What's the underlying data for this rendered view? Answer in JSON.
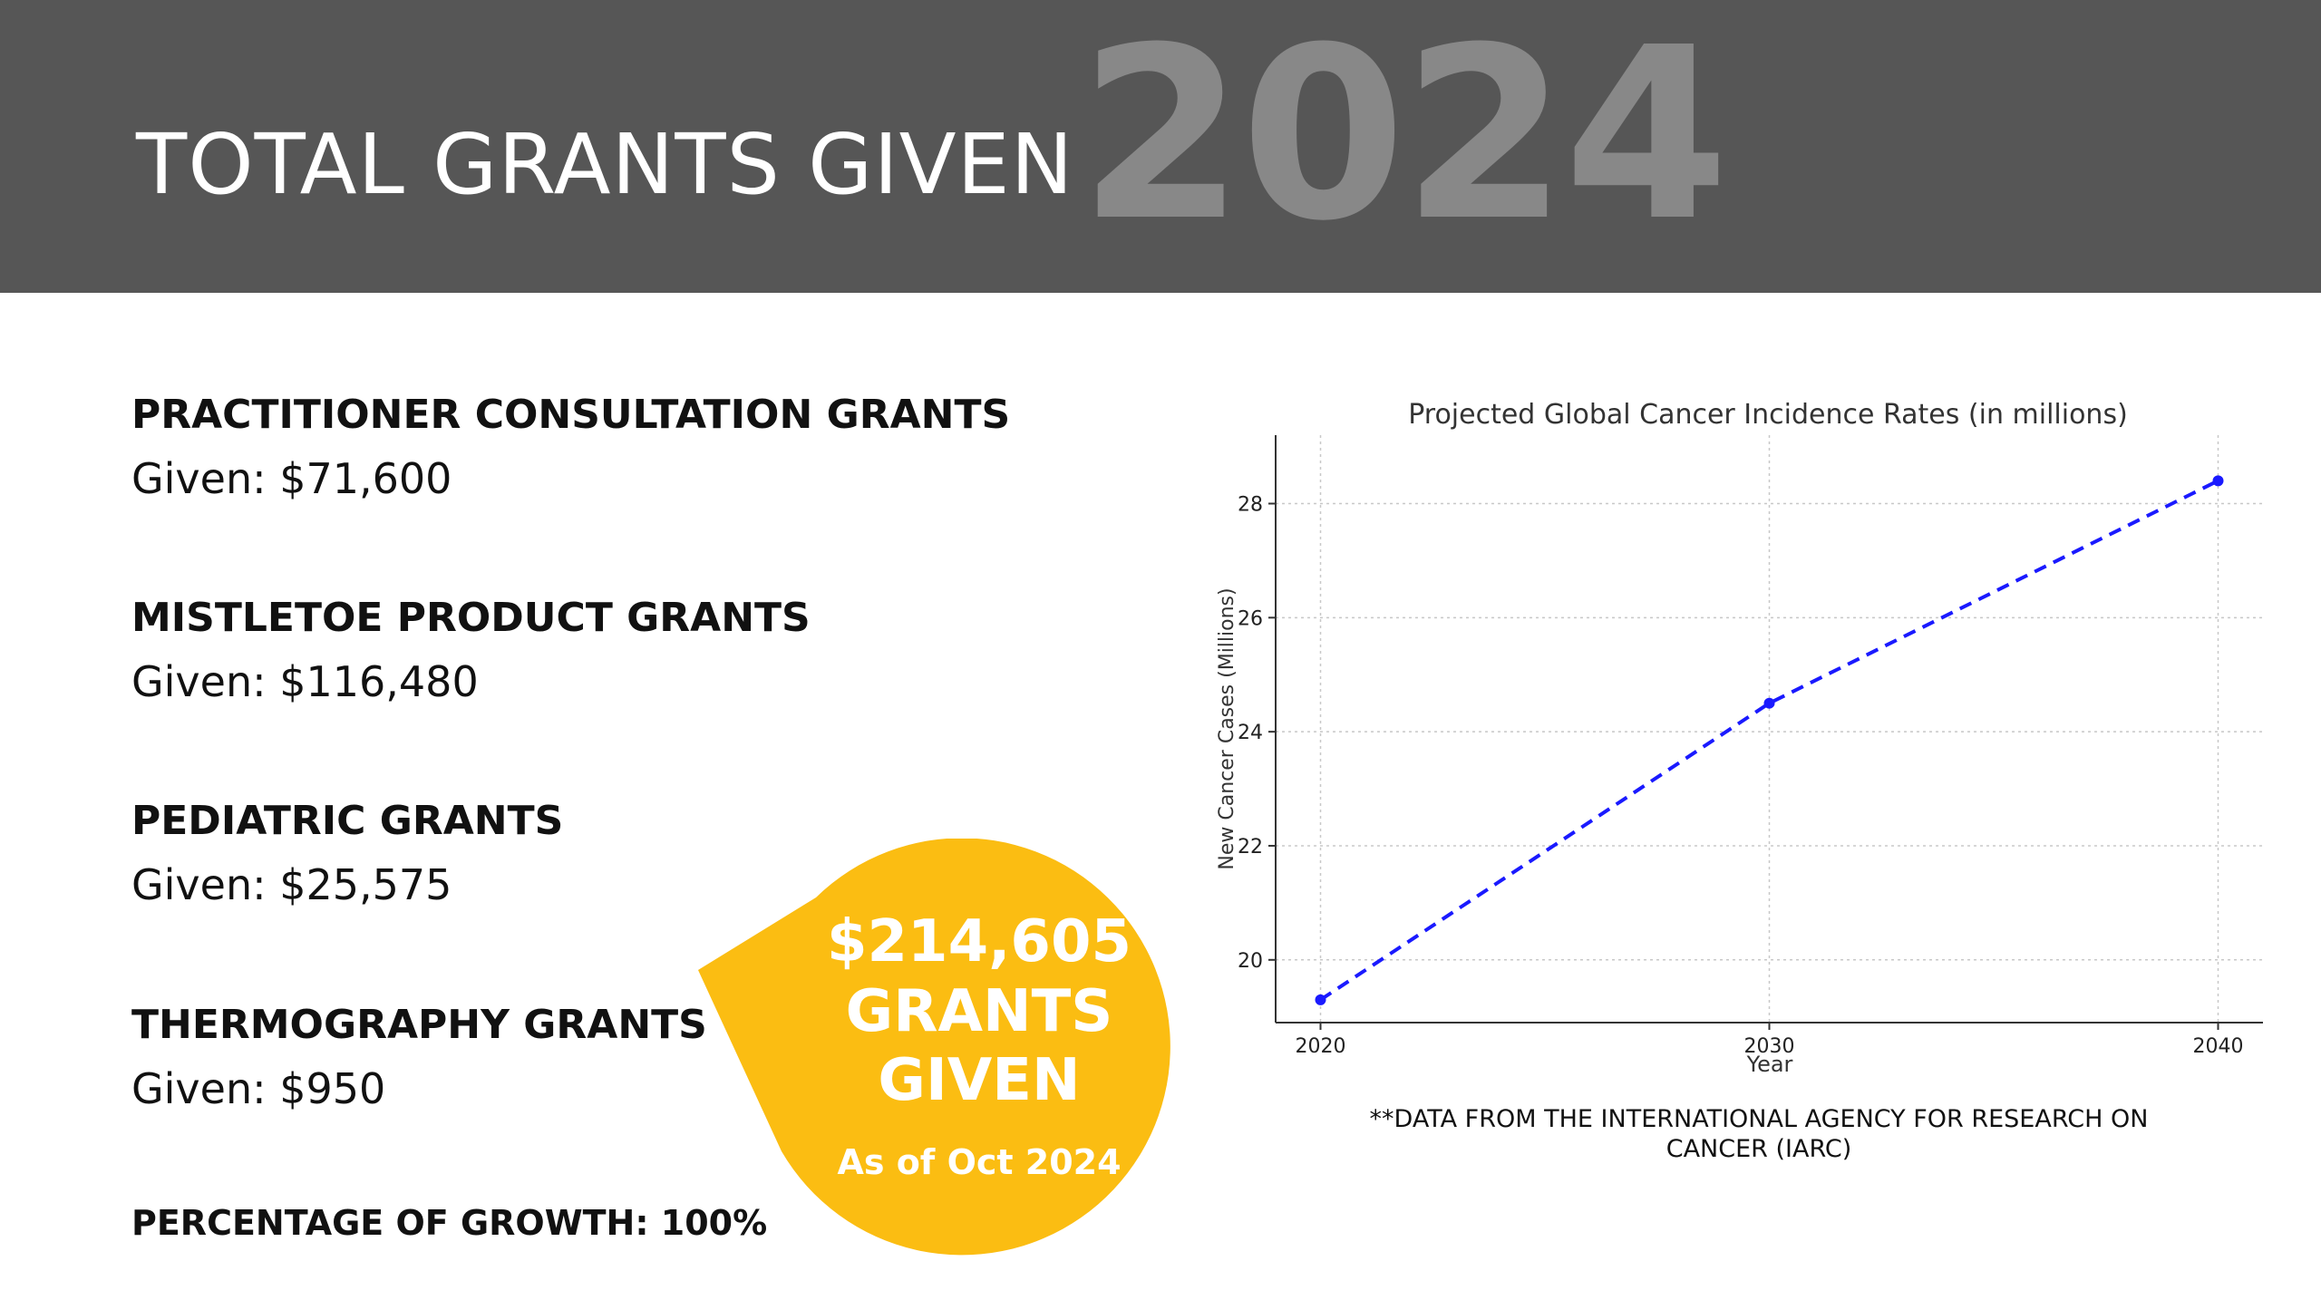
{
  "header": {
    "title": "TOTAL GRANTS GIVEN",
    "year": "2024"
  },
  "grants": [
    {
      "name": "PRACTITIONER CONSULTATION GRANTS",
      "given": "Given: $71,600"
    },
    {
      "name": "MISTLETOE PRODUCT GRANTS",
      "given": "Given: $116,480"
    },
    {
      "name": "PEDIATRIC GRANTS",
      "given": "Given: $25,575"
    },
    {
      "name": "THERMOGRAPHY GRANTS",
      "given": "Given: $950"
    }
  ],
  "growth": "PERCENTAGE OF GROWTH: 100%",
  "callout": {
    "amount": "$214,605",
    "label": "GRANTS GIVEN",
    "date": "As of Oct 2024",
    "color": "#FBBD12"
  },
  "colors": {
    "banner": "#565656",
    "year": "#888888",
    "series": "#1a1aff"
  },
  "chart_data": {
    "type": "line",
    "title": "Projected Global Cancer Incidence Rates (in millions)",
    "xlabel": "Year",
    "ylabel": "New Cancer Cases (Millions)",
    "x": [
      2020,
      2030,
      2040
    ],
    "series": [
      {
        "values": [
          19.3,
          24.5,
          28.4
        ],
        "style": "dashed",
        "marker": "circle"
      }
    ],
    "xticks": [
      "2020",
      "2030",
      "2040"
    ],
    "yticks": [
      "20",
      "22",
      "24",
      "26",
      "28"
    ],
    "xlim": [
      2019,
      2041
    ],
    "ylim": [
      18.9,
      29.2
    ],
    "grid": true
  },
  "source_note": "**DATA FROM THE INTERNATIONAL AGENCY FOR RESEARCH ON CANCER (IARC)"
}
